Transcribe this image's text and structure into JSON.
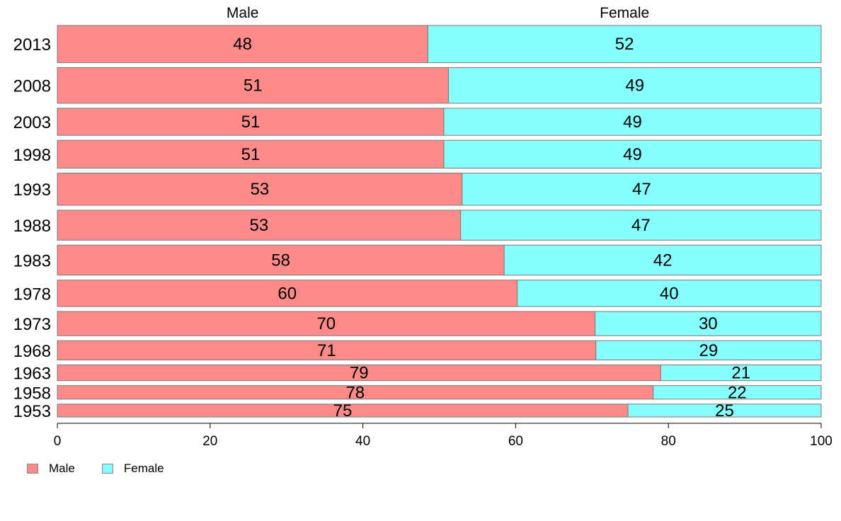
{
  "chart_data": {
    "type": "bar",
    "orientation": "horizontal",
    "stacked": true,
    "variable_width": true,
    "categories": [
      "2013",
      "2008",
      "2003",
      "1998",
      "1993",
      "1988",
      "1983",
      "1978",
      "1973",
      "1968",
      "1963",
      "1958",
      "1953"
    ],
    "relative_widths": [
      52,
      50,
      38,
      39,
      45,
      42,
      42,
      37,
      34,
      27,
      22,
      19,
      18
    ],
    "series": [
      {
        "name": "Male",
        "color": "#ff8a8a",
        "values": [
          48.5,
          51.2,
          50.6,
          50.6,
          53.0,
          52.8,
          58.5,
          60.2,
          70.4,
          70.5,
          79.0,
          78.0,
          74.7
        ]
      },
      {
        "name": "Female",
        "color": "#88ffff",
        "values": [
          51.5,
          48.8,
          49.4,
          49.4,
          47.0,
          47.2,
          41.5,
          39.8,
          29.6,
          29.5,
          21.0,
          22.0,
          25.3
        ]
      }
    ],
    "data_labels": {
      "Male": [
        "48",
        "51",
        "51",
        "51",
        "53",
        "53",
        "58",
        "60",
        "70",
        "71",
        "79",
        "78",
        "75"
      ],
      "Female": [
        "52",
        "49",
        "49",
        "49",
        "47",
        "47",
        "42",
        "40",
        "30",
        "29",
        "21",
        "22",
        "25"
      ]
    },
    "column_headers": [
      "Male",
      "Female"
    ],
    "xlim": [
      0,
      100
    ],
    "x_ticks": [
      0,
      20,
      40,
      60,
      80,
      100
    ],
    "grid": false,
    "legend_position": "bottom-left"
  },
  "legend": {
    "items": [
      {
        "label": "Male",
        "color": "#ff8a8a"
      },
      {
        "label": "Female",
        "color": "#88ffff"
      }
    ]
  }
}
